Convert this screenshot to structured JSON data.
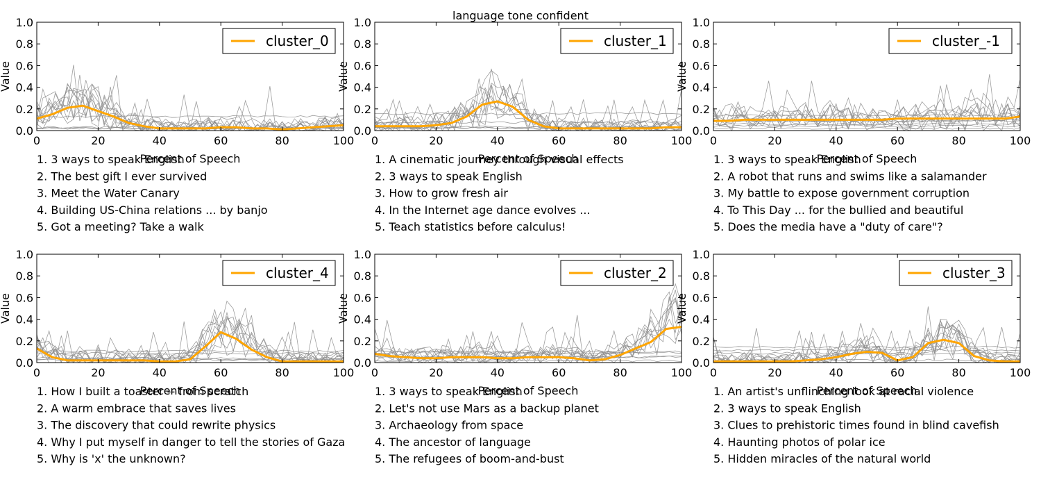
{
  "figure": {
    "title": "language tone confident"
  },
  "chart_data": [
    {
      "type": "line",
      "xlabel": "Percent of Speech",
      "ylabel": "Value",
      "xlim": [
        0,
        100
      ],
      "ylim": [
        0,
        1.0
      ],
      "xticks": [
        "0",
        "20",
        "40",
        "60",
        "80",
        "100"
      ],
      "yticks": [
        "0.0",
        "0.2",
        "0.4",
        "0.6",
        "0.8",
        "1.0"
      ],
      "legend": "top-right",
      "series": [
        {
          "name": "cluster_0",
          "color": "#ffa500",
          "x": [
            0,
            5,
            10,
            15,
            20,
            25,
            30,
            35,
            40,
            45,
            50,
            55,
            60,
            65,
            70,
            75,
            80,
            85,
            90,
            95,
            100
          ],
          "values": [
            0.11,
            0.15,
            0.21,
            0.23,
            0.18,
            0.13,
            0.07,
            0.04,
            0.02,
            0.02,
            0.02,
            0.02,
            0.03,
            0.03,
            0.02,
            0.02,
            0.01,
            0.02,
            0.03,
            0.04,
            0.05
          ]
        }
      ],
      "talks": [
        "1. 3 ways to speak English",
        "2. The best gift I ever survived",
        "3. Meet the Water Canary",
        "4. Building US-China relations ... by banjo",
        "5. Got a meeting? Take a walk"
      ]
    },
    {
      "type": "line",
      "xlabel": "Percent of Speech",
      "ylabel": "Value",
      "xlim": [
        0,
        100
      ],
      "ylim": [
        0,
        1.0
      ],
      "xticks": [
        "0",
        "20",
        "40",
        "60",
        "80",
        "100"
      ],
      "yticks": [
        "0.0",
        "0.2",
        "0.4",
        "0.6",
        "0.8",
        "1.0"
      ],
      "legend": "top-right",
      "series": [
        {
          "name": "cluster_1",
          "color": "#ffa500",
          "x": [
            0,
            5,
            10,
            15,
            20,
            25,
            30,
            35,
            40,
            45,
            50,
            55,
            60,
            65,
            70,
            75,
            80,
            85,
            90,
            95,
            100
          ],
          "values": [
            0.04,
            0.04,
            0.04,
            0.04,
            0.05,
            0.07,
            0.13,
            0.24,
            0.27,
            0.22,
            0.1,
            0.04,
            0.02,
            0.02,
            0.02,
            0.02,
            0.02,
            0.02,
            0.02,
            0.03,
            0.03
          ]
        }
      ],
      "talks": [
        "1. A cinematic journey through visual effects",
        "2. 3 ways to speak English",
        "3. How to grow fresh air",
        "4. In the Internet age  dance evolves ...",
        "5. Teach statistics before calculus!"
      ]
    },
    {
      "type": "line",
      "xlabel": "Percent of Speech",
      "ylabel": "Value",
      "xlim": [
        0,
        100
      ],
      "ylim": [
        0,
        1.0
      ],
      "xticks": [
        "0",
        "20",
        "40",
        "60",
        "80",
        "100"
      ],
      "yticks": [
        "0.0",
        "0.2",
        "0.4",
        "0.6",
        "0.8",
        "1.0"
      ],
      "legend": "top-right",
      "series": [
        {
          "name": "cluster_-1",
          "color": "#ffa500",
          "x": [
            0,
            5,
            10,
            15,
            20,
            25,
            30,
            35,
            40,
            45,
            50,
            55,
            60,
            65,
            70,
            75,
            80,
            85,
            90,
            95,
            100
          ],
          "values": [
            0.09,
            0.09,
            0.1,
            0.1,
            0.1,
            0.1,
            0.1,
            0.1,
            0.1,
            0.1,
            0.1,
            0.1,
            0.11,
            0.11,
            0.11,
            0.11,
            0.11,
            0.11,
            0.11,
            0.11,
            0.13
          ]
        }
      ],
      "talks": [
        "1. 3 ways to speak English",
        "2. A robot that runs and swims like a salamander",
        "3. My battle to expose government corruption",
        "4. To This Day ... for the bullied and beautiful",
        "5. Does the media have a \"duty of care\"?"
      ]
    },
    {
      "type": "line",
      "xlabel": "Percent of Speech",
      "ylabel": "Value",
      "xlim": [
        0,
        100
      ],
      "ylim": [
        0,
        1.0
      ],
      "xticks": [
        "0",
        "20",
        "40",
        "60",
        "80",
        "100"
      ],
      "yticks": [
        "0.0",
        "0.2",
        "0.4",
        "0.6",
        "0.8",
        "1.0"
      ],
      "legend": "top-right",
      "series": [
        {
          "name": "cluster_4",
          "color": "#ffa500",
          "x": [
            0,
            5,
            10,
            15,
            20,
            25,
            30,
            35,
            40,
            45,
            50,
            55,
            60,
            65,
            70,
            75,
            80,
            85,
            90,
            95,
            100
          ],
          "values": [
            0.13,
            0.05,
            0.02,
            0.02,
            0.02,
            0.02,
            0.02,
            0.02,
            0.01,
            0.01,
            0.03,
            0.15,
            0.28,
            0.22,
            0.12,
            0.05,
            0.01,
            0.01,
            0.01,
            0.01,
            0.01
          ]
        }
      ],
      "talks": [
        "1. How I built a toaster -- from scratch",
        "2. A warm embrace that saves lives",
        "3. The discovery that could rewrite physics",
        "4. Why I put myself in danger to tell the stories of Gaza",
        "5. Why is 'x' the unknown?"
      ]
    },
    {
      "type": "line",
      "xlabel": "Percent of Speech",
      "ylabel": "Value",
      "xlim": [
        0,
        100
      ],
      "ylim": [
        0,
        1.0
      ],
      "xticks": [
        "0",
        "20",
        "40",
        "60",
        "80",
        "100"
      ],
      "yticks": [
        "0.0",
        "0.2",
        "0.4",
        "0.6",
        "0.8",
        "1.0"
      ],
      "legend": "top-right",
      "series": [
        {
          "name": "cluster_2",
          "color": "#ffa500",
          "x": [
            0,
            5,
            10,
            15,
            20,
            25,
            30,
            35,
            40,
            45,
            50,
            55,
            60,
            65,
            70,
            75,
            80,
            85,
            90,
            95,
            100
          ],
          "values": [
            0.08,
            0.06,
            0.05,
            0.04,
            0.04,
            0.05,
            0.05,
            0.05,
            0.04,
            0.04,
            0.05,
            0.05,
            0.05,
            0.04,
            0.02,
            0.03,
            0.07,
            0.13,
            0.19,
            0.31,
            0.33
          ]
        }
      ],
      "talks": [
        "1. 3 ways to speak English",
        "2. Let's not use Mars as a backup planet",
        "3. Archaeology from space",
        "4. The ancestor of language",
        "5. The refugees of boom-and-bust"
      ]
    },
    {
      "type": "line",
      "xlabel": "Percent of Speech",
      "ylabel": "Value",
      "xlim": [
        0,
        100
      ],
      "ylim": [
        0,
        1.0
      ],
      "xticks": [
        "0",
        "20",
        "40",
        "60",
        "80",
        "100"
      ],
      "yticks": [
        "0.0",
        "0.2",
        "0.4",
        "0.6",
        "0.8",
        "1.0"
      ],
      "legend": "top-right",
      "series": [
        {
          "name": "cluster_3",
          "color": "#ffa500",
          "x": [
            0,
            5,
            10,
            15,
            20,
            25,
            30,
            35,
            40,
            45,
            50,
            55,
            60,
            65,
            70,
            75,
            80,
            85,
            90,
            95,
            100
          ],
          "values": [
            0.01,
            0.01,
            0.01,
            0.01,
            0.01,
            0.01,
            0.02,
            0.03,
            0.05,
            0.08,
            0.1,
            0.09,
            0.02,
            0.05,
            0.18,
            0.21,
            0.18,
            0.06,
            0.02,
            0.01,
            0.01
          ]
        }
      ],
      "talks": [
        "1. An artist's unflinching look at racial violence",
        "2. 3 ways to speak English",
        "3. Clues to prehistoric times  found in blind cavefish",
        "4. Haunting photos of polar ice",
        "5. Hidden miracles of the natural world"
      ]
    }
  ]
}
